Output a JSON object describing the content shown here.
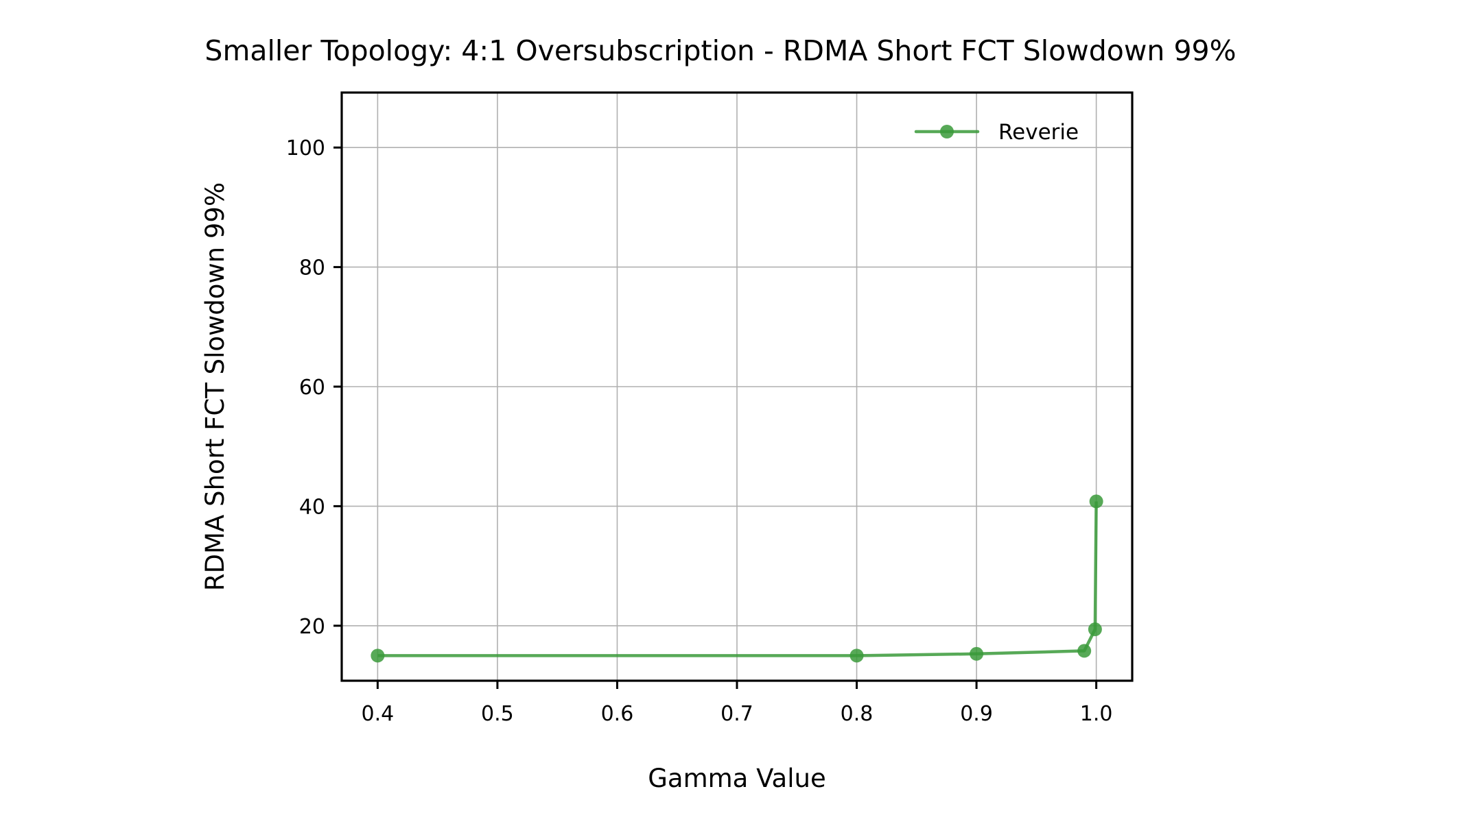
{
  "chart_data": {
    "type": "line",
    "title": "Smaller Topology: 4:1 Oversubscription - RDMA Short FCT Slowdown 99%",
    "xlabel": "Gamma Value",
    "ylabel": "RDMA Short FCT Slowdown 99%",
    "xlim": [
      0.37,
      1.03
    ],
    "ylim": [
      10.8,
      109.2
    ],
    "x_ticks": [
      0.4,
      0.5,
      0.6,
      0.7,
      0.8,
      0.9,
      1.0
    ],
    "x_tick_labels": [
      "0.4",
      "0.5",
      "0.6",
      "0.7",
      "0.8",
      "0.9",
      "1.0"
    ],
    "y_ticks": [
      20,
      40,
      60,
      80,
      100
    ],
    "y_tick_labels": [
      "20",
      "40",
      "60",
      "80",
      "100"
    ],
    "grid": true,
    "legend_position": "top-right",
    "series": [
      {
        "name": "Reverie",
        "color": "#3a9a3a",
        "marker": "circle",
        "x": [
          0.4,
          0.8,
          0.9,
          0.99,
          0.999,
          1.0
        ],
        "y": [
          15.0,
          15.0,
          15.3,
          15.8,
          19.4,
          40.8
        ]
      }
    ]
  }
}
